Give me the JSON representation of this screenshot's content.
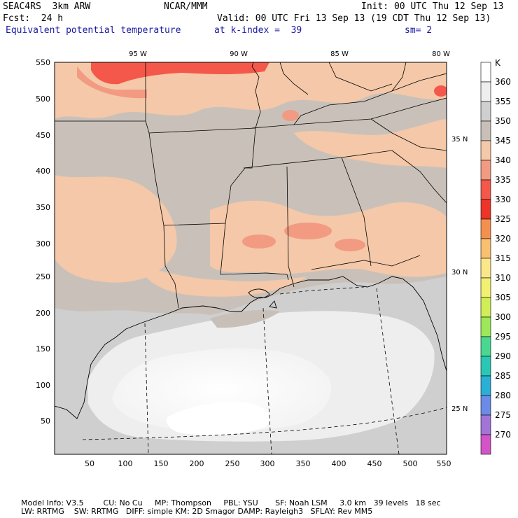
{
  "header": {
    "model": "SEAC4RS  3km ARW",
    "org": "NCAR/MMM",
    "init": "Init: 00 UTC Thu 12 Sep 13",
    "fcst": "Fcst:  24 h",
    "valid": "Valid: 00 UTC Fri 13 Sep 13 (19 CDT Thu 12 Sep 13)",
    "field": "Equivalent potential temperature",
    "level": "at k-index =  39",
    "smooth": "sm= 2"
  },
  "colors": {
    "title_blue": "#1a1aa6",
    "border": "#000000"
  },
  "map": {
    "x_ticks": [
      "50",
      "100",
      "150",
      "200",
      "250",
      "300",
      "350",
      "400",
      "450",
      "500",
      "550"
    ],
    "y_ticks": [
      "550",
      "500",
      "450",
      "400",
      "350",
      "300",
      "250",
      "200",
      "150",
      "100",
      "50"
    ],
    "lon_labels": [
      "95 W",
      "90 W",
      "85 W",
      "80 W"
    ],
    "lat_labels": [
      "35 N",
      "30 N",
      "25 N"
    ]
  },
  "legend": {
    "unit": "K",
    "levels": [
      {
        "value": "360",
        "color": "#ffffff"
      },
      {
        "value": "355",
        "color": "#eeeeee"
      },
      {
        "value": "350",
        "color": "#cfcfcf"
      },
      {
        "value": "345",
        "color": "#c8c0b8"
      },
      {
        "value": "340",
        "color": "#f4c8a8"
      },
      {
        "value": "335",
        "color": "#f29a82"
      },
      {
        "value": "330",
        "color": "#f4584a"
      },
      {
        "value": "325",
        "color": "#ee3428"
      },
      {
        "value": "320",
        "color": "#f4904e"
      },
      {
        "value": "315",
        "color": "#f8c070"
      },
      {
        "value": "310",
        "color": "#fce68a"
      },
      {
        "value": "305",
        "color": "#f2f070"
      },
      {
        "value": "300",
        "color": "#d0ee58"
      },
      {
        "value": "295",
        "color": "#9ce858"
      },
      {
        "value": "290",
        "color": "#48d892"
      },
      {
        "value": "285",
        "color": "#28c8b4"
      },
      {
        "value": "280",
        "color": "#2ab0d6"
      },
      {
        "value": "275",
        "color": "#6a8ce8"
      },
      {
        "value": "270",
        "color": "#a274d8"
      },
      {
        "value": "",
        "color": "#d454c8"
      }
    ]
  },
  "footer": {
    "line1": "Model Info: V3.5        CU: No Cu     MP: Thompson     PBL: YSU       SF: Noah LSM     3.0 km   39 levels   18 sec",
    "line2": "LW: RRTMG    SW: RRTMG   DIFF: simple KM: 2D Smagor DAMP: Rayleigh3   SFLAY: Rev MM5"
  }
}
